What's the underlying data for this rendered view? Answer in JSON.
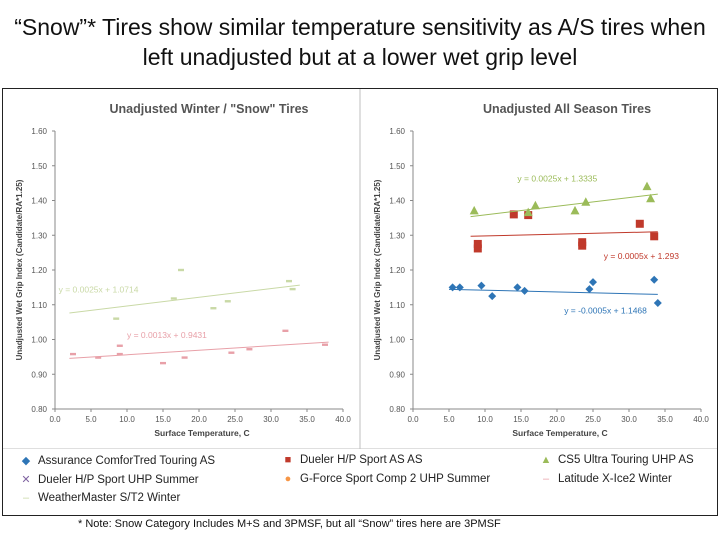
{
  "slide": {
    "title": "“Snow”* Tires show similar temperature sensitivity as A/S tires when left unadjusted but at a lower wet grip level",
    "note": "* Note: Snow Category Includes M+S and 3PMSF, but all “Snow” tires here are 3PMSF"
  },
  "legend": [
    {
      "label": "Assurance ComforTred Touring AS",
      "marker": "◆",
      "color": "#2E75B6"
    },
    {
      "label": "Dueler H/P Sport AS AS",
      "marker": "■",
      "color": "#C0392B"
    },
    {
      "label": "CS5 Ultra Touring UHP AS",
      "marker": "▲",
      "color": "#9BBB59"
    },
    {
      "label": "Dueler H/P Sport UHP Summer",
      "marker": "✕",
      "color": "#8064A2"
    },
    {
      "label": "G-Force Sport Comp 2 UHP Summer",
      "marker": "●",
      "color": "#F79646"
    },
    {
      "label": "Latitude X-Ice2 Winter",
      "marker": "–",
      "color": "#E8A0A8"
    },
    {
      "label": "WeatherMaster S/T2 Winter",
      "marker": "–",
      "color": "#C9D9A6"
    }
  ],
  "chart_data": [
    {
      "type": "scatter",
      "title": "Unadjusted Winter / \"Snow\" Tires",
      "xlabel": "Surface Temperature, C",
      "ylabel": "Unadjusted Wet Grip Index (Candidate/RA*1.25)",
      "xlim": [
        0,
        40
      ],
      "ylim": [
        0.8,
        1.6
      ],
      "xticks": [
        "0.0",
        "5.0",
        "10.0",
        "15.0",
        "20.0",
        "25.0",
        "30.0",
        "35.0",
        "40.0"
      ],
      "yticks": [
        "0.80",
        "0.90",
        "1.00",
        "1.10",
        "1.20",
        "1.30",
        "1.40",
        "1.50",
        "1.60"
      ],
      "series": [
        {
          "name": "Latitude X-Ice2 Winter",
          "marker": "dash",
          "color": "#E8A0A8",
          "points": [
            [
              2.5,
              0.958
            ],
            [
              6,
              0.948
            ],
            [
              9,
              0.958
            ],
            [
              9,
              0.982
            ],
            [
              15,
              0.932
            ],
            [
              18,
              0.948
            ],
            [
              24.5,
              0.962
            ],
            [
              27,
              0.972
            ],
            [
              32,
              1.025
            ],
            [
              37.5,
              0.985
            ]
          ],
          "trend": {
            "x": [
              2,
              38
            ],
            "slope": 0.0013,
            "intercept": 0.9431,
            "label": "y = 0.0013x + 0.9431",
            "label_x": 10,
            "label_y": 1.005
          }
        },
        {
          "name": "WeatherMaster S/T2 Winter",
          "marker": "dash",
          "color": "#C9D9A6",
          "points": [
            [
              8.5,
              1.06
            ],
            [
              16.5,
              1.118
            ],
            [
              17.5,
              1.2
            ],
            [
              22,
              1.09
            ],
            [
              24,
              1.11
            ],
            [
              32.5,
              1.168
            ],
            [
              33,
              1.145
            ]
          ],
          "trend": {
            "x": [
              2,
              34
            ],
            "slope": 0.0025,
            "intercept": 1.0714,
            "label": "y = 0.0025x + 1.0714",
            "label_x": 0.5,
            "label_y": 1.135
          }
        }
      ]
    },
    {
      "type": "scatter",
      "title": "Unadjusted All Season Tires",
      "xlabel": "Surface Temperature, C",
      "ylabel": "Unadjusted Wet Grip Index (Candidate/RA*1.25)",
      "xlim": [
        0,
        40
      ],
      "ylim": [
        0.8,
        1.6
      ],
      "xticks": [
        "0.0",
        "5.0",
        "10.0",
        "15.0",
        "20.0",
        "25.0",
        "30.0",
        "35.0",
        "40.0"
      ],
      "yticks": [
        "0.80",
        "0.90",
        "1.00",
        "1.10",
        "1.20",
        "1.30",
        "1.40",
        "1.50",
        "1.60"
      ],
      "series": [
        {
          "name": "Assurance ComforTred Touring AS",
          "marker": "diamond",
          "color": "#2E75B6",
          "points": [
            [
              5.5,
              1.15
            ],
            [
              6.5,
              1.15
            ],
            [
              9.5,
              1.155
            ],
            [
              11,
              1.125
            ],
            [
              14.5,
              1.15
            ],
            [
              15.5,
              1.14
            ],
            [
              24.5,
              1.145
            ],
            [
              25,
              1.165
            ],
            [
              33.5,
              1.172
            ],
            [
              34,
              1.105
            ]
          ],
          "trend": {
            "x": [
              5,
              34
            ],
            "slope": -0.0005,
            "intercept": 1.1468,
            "label": "y = -0.0005x + 1.1468",
            "label_x": 21,
            "label_y": 1.075
          }
        },
        {
          "name": "Dueler H/P Sport AS AS",
          "marker": "square",
          "color": "#C0392B",
          "points": [
            [
              9,
              1.262
            ],
            [
              9,
              1.275
            ],
            [
              14,
              1.36
            ],
            [
              16,
              1.358
            ],
            [
              23.5,
              1.27
            ],
            [
              23.5,
              1.28
            ],
            [
              31.5,
              1.333
            ],
            [
              33.5,
              1.297
            ]
          ],
          "trend": {
            "x": [
              8,
              34
            ],
            "slope": 0.0005,
            "intercept": 1.293,
            "label": "y = 0.0005x + 1.293",
            "label_x": 26.5,
            "label_y": 1.232
          }
        },
        {
          "name": "CS5 Ultra Touring UHP AS",
          "marker": "triangle",
          "color": "#9BBB59",
          "points": [
            [
              8.5,
              1.37
            ],
            [
              16,
              1.365
            ],
            [
              17,
              1.385
            ],
            [
              22.5,
              1.37
            ],
            [
              24,
              1.395
            ],
            [
              32.5,
              1.44
            ],
            [
              33,
              1.405
            ]
          ],
          "trend": {
            "x": [
              8,
              34
            ],
            "slope": 0.0025,
            "intercept": 1.3335,
            "label": "y = 0.0025x + 1.3335",
            "label_x": 14.5,
            "label_y": 1.455
          }
        }
      ]
    }
  ]
}
